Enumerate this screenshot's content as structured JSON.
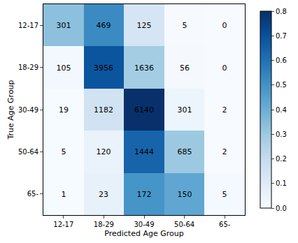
{
  "chart_data": {
    "type": "heatmap",
    "xlabel": "Predicted Age Group",
    "ylabel": "True Age Group",
    "x_categories": [
      "12-17",
      "18-29",
      "30-49",
      "50-64",
      "65-"
    ],
    "y_categories": [
      "12-17",
      "18-29",
      "30-49",
      "50-64",
      "65-"
    ],
    "cells": [
      [
        301,
        469,
        125,
        5,
        0
      ],
      [
        105,
        3956,
        1636,
        56,
        0
      ],
      [
        19,
        1182,
        6140,
        301,
        2
      ],
      [
        5,
        120,
        1444,
        685,
        2
      ],
      [
        1,
        23,
        172,
        150,
        5
      ]
    ],
    "data_labels": true,
    "color": "Blues",
    "colorbar_range": [
      0,
      0.8
    ],
    "colorbar_ticks": [
      {
        "value": 0,
        "label": "0.0"
      },
      {
        "value": 0.1,
        "label": "0.1"
      },
      {
        "value": 0.2,
        "label": "0.2"
      },
      {
        "value": 0.3,
        "label": "0.3"
      },
      {
        "value": 0.4,
        "label": "0.4"
      },
      {
        "value": 0.5,
        "label": "0.5"
      },
      {
        "value": 0.6,
        "label": "0.6"
      },
      {
        "value": 0.7,
        "label": "0.7"
      },
      {
        "value": 0.8,
        "label": "0.8"
      }
    ]
  }
}
